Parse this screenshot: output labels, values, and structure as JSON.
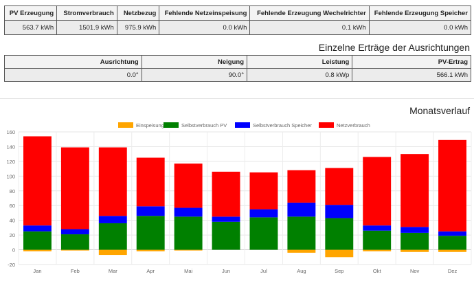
{
  "summary": {
    "headers": [
      "PV Erzeugung",
      "Stromverbrauch",
      "Netzbezug",
      "Fehlende Netzeinspeisung",
      "Fehlende Erzeugung Wechelrichter",
      "Fehlende Erzeugung Speicher"
    ],
    "values": [
      "563.7 kWh",
      "1501.9 kWh",
      "975.9 kWh",
      "0.0 kWh",
      "0.1 kWh",
      "0.0 kWh"
    ]
  },
  "orientation": {
    "title": "Einzelne Erträge der Ausrichtungen",
    "headers": [
      "Ausrichtung",
      "Neigung",
      "Leistung",
      "PV-Ertrag"
    ],
    "values": [
      "0.0°",
      "90.0°",
      "0.8 kWp",
      "566.1 kWh"
    ]
  },
  "monthly": {
    "title": "Monatsverlauf"
  },
  "chart_data": {
    "type": "bar",
    "stacked": true,
    "categories": [
      "Jan",
      "Feb",
      "Mar",
      "Apr",
      "Mai",
      "Jun",
      "Jul",
      "Aug",
      "Sep",
      "Okt",
      "Nov",
      "Dez"
    ],
    "series": [
      {
        "name": "Einspeisung",
        "color": "#ffa500",
        "values": [
          -2,
          -1,
          -7,
          -2,
          -1,
          0,
          0,
          -4,
          -10,
          -2,
          -3,
          -3
        ]
      },
      {
        "name": "Selbstverbrauch PV",
        "color": "#008000",
        "values": [
          25,
          21,
          36,
          46,
          45,
          38,
          44,
          45,
          43,
          26,
          23,
          19
        ]
      },
      {
        "name": "Selbstverbrauch Speicher",
        "color": "#0000ff",
        "values": [
          8,
          7,
          10,
          13,
          12,
          7,
          11,
          19,
          18,
          7,
          8,
          6
        ]
      },
      {
        "name": "Netzverbrauch",
        "color": "#ff0000",
        "values": [
          121,
          111,
          93,
          66,
          60,
          61,
          50,
          44,
          50,
          93,
          99,
          124
        ]
      }
    ],
    "ylim": [
      -20,
      160
    ],
    "yticks": [
      -20,
      0,
      20,
      40,
      60,
      80,
      100,
      120,
      140,
      160
    ],
    "legend": "top-center",
    "grid": true
  }
}
